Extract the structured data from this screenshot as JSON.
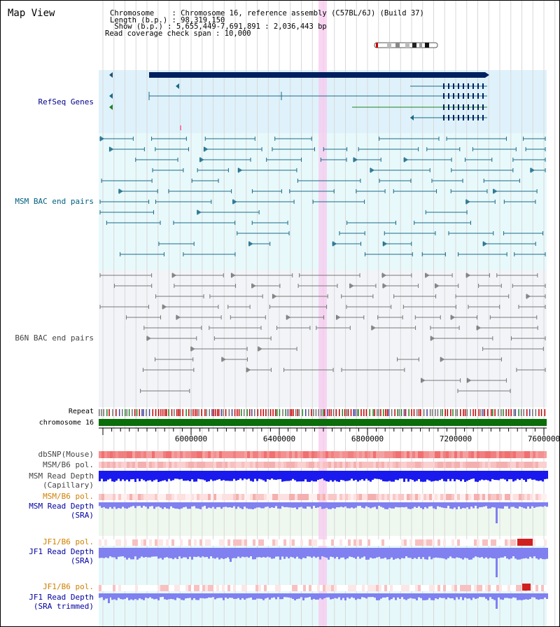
{
  "title": "Map View",
  "info": {
    "line1": "Chromosome    : Chromosome 16, reference assembly (C57BL/6J) (Build 37)",
    "line2": "Length (b.p.) : 98,319,150",
    "line3": " Show (b.p.) : 5,655,449-7,691,891 : 2,036,443 bp",
    "line4": "Read coverage check span : 10,000"
  },
  "tracks": {
    "refseq": "RefSeq Genes",
    "msm_bac": "MSM BAC end pairs",
    "b6n_bac": "B6N BAC end pairs",
    "repeat": "Repeat",
    "chromosome": "chromosome 16",
    "dbsnp": "dbSNP(Mouse)",
    "msm_b6_pol": "MSM/B6 pol.",
    "msm_depth_cap_1": "MSM Read Depth",
    "msm_depth_cap_2": "(Capillary)",
    "msm_b6_pol2": "MSM/B6 pol.",
    "msm_depth_sra_1": "MSM Read Depth",
    "msm_depth_sra_2": "(SRA)",
    "jf1_b6_pol": "JF1/B6 pol.",
    "jf1_depth_sra_1": "JF1 Read Depth",
    "jf1_depth_sra_2": "(SRA)",
    "jf1_b6_pol2": "JF1/B6 pol.",
    "jf1_depth_trim_1": "JF1 Read Depth",
    "jf1_depth_trim_2": "(SRA trimmed)"
  },
  "axis_ticks": [
    "6000000",
    "6400000",
    "6800000",
    "7200000",
    "7600000"
  ],
  "colors": {
    "refseq_bg": "#dff2fb",
    "msm_bg": "#e8f9fb",
    "b6n_bg": "#f2f4f8",
    "highlight": "#f7c9ef",
    "gene": "#002060",
    "msm_pair": "#1a6a88",
    "b6n_pair": "#777777",
    "chromosome": "#0a6e0a",
    "depth_blue": "#1a1aee",
    "depth_light": "#8080f0"
  }
}
